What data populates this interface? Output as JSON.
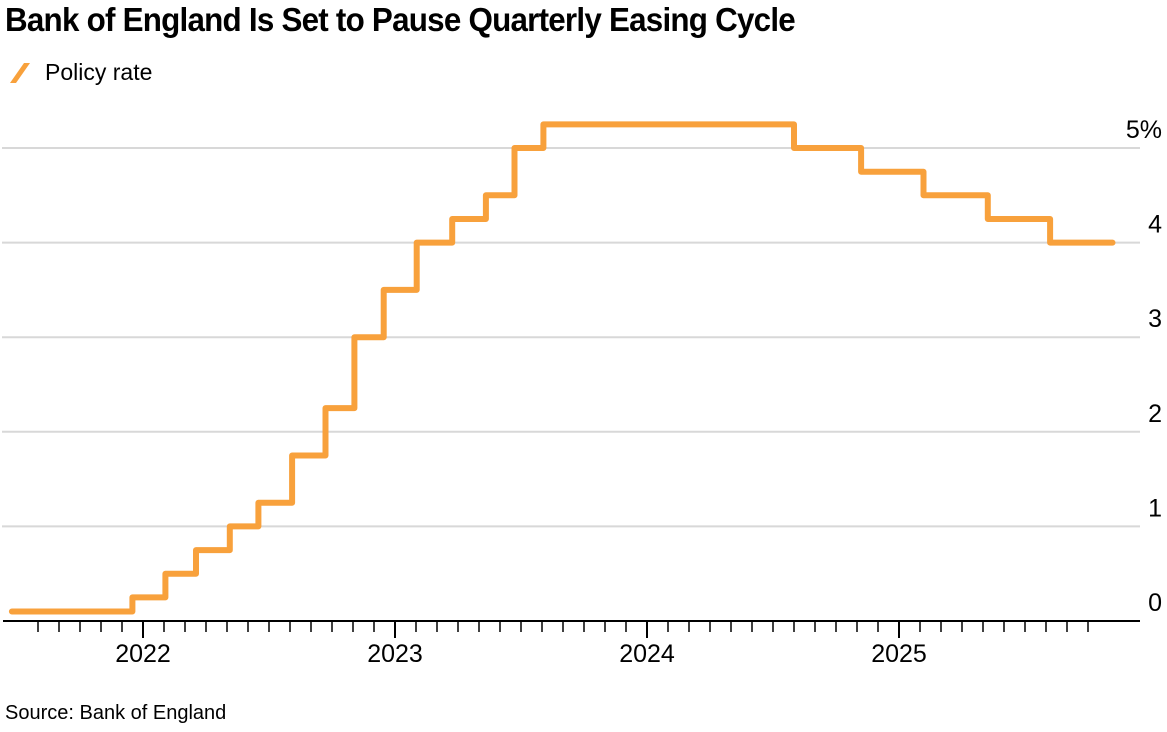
{
  "chart_data": {
    "type": "line",
    "line_style": "step-after",
    "title": "Bank of England Is Set to Pause Quarterly Easing Cycle",
    "source": "Source: Bank of England",
    "xlabel": "",
    "ylabel": "",
    "x_tick_labels": [
      "2022",
      "2023",
      "2024",
      "2025"
    ],
    "x_ticks_major_years": [
      2022,
      2023,
      2024,
      2025
    ],
    "x_minor_ticks": "monthly",
    "xlim_dates": [
      "2021-06-20",
      "2025-12-10"
    ],
    "y_ticks": [
      {
        "value": 0,
        "label": "0"
      },
      {
        "value": 1,
        "label": "1"
      },
      {
        "value": 2,
        "label": "2"
      },
      {
        "value": 3,
        "label": "3"
      },
      {
        "value": 4,
        "label": "4"
      },
      {
        "value": 5,
        "label": "5%"
      }
    ],
    "ylim": [
      0,
      5.55
    ],
    "grid": "horizontal",
    "y_axis_side": "right",
    "colors": {
      "line": "#F8A13C",
      "grid": "#D8D8D8",
      "axis": "#000000",
      "text": "#000000",
      "background": "#FFFFFF"
    },
    "series": [
      {
        "name": "Policy rate",
        "color": "#F8A13C",
        "unit": "%",
        "points": [
          {
            "date": "2021-06-24",
            "rate": 0.1
          },
          {
            "date": "2021-12-16",
            "rate": 0.25
          },
          {
            "date": "2022-02-03",
            "rate": 0.5
          },
          {
            "date": "2022-03-17",
            "rate": 0.75
          },
          {
            "date": "2022-05-05",
            "rate": 1.0
          },
          {
            "date": "2022-06-16",
            "rate": 1.25
          },
          {
            "date": "2022-08-04",
            "rate": 1.75
          },
          {
            "date": "2022-09-22",
            "rate": 2.25
          },
          {
            "date": "2022-11-03",
            "rate": 3.0
          },
          {
            "date": "2022-12-15",
            "rate": 3.5
          },
          {
            "date": "2023-02-02",
            "rate": 4.0
          },
          {
            "date": "2023-03-23",
            "rate": 4.25
          },
          {
            "date": "2023-05-11",
            "rate": 4.5
          },
          {
            "date": "2023-06-22",
            "rate": 5.0
          },
          {
            "date": "2023-08-03",
            "rate": 5.25
          },
          {
            "date": "2024-08-01",
            "rate": 5.0
          },
          {
            "date": "2024-11-07",
            "rate": 4.75
          },
          {
            "date": "2025-02-06",
            "rate": 4.5
          },
          {
            "date": "2025-05-08",
            "rate": 4.25
          },
          {
            "date": "2025-08-07",
            "rate": 4.0
          },
          {
            "date": "2025-11-06",
            "rate": 4.0
          }
        ]
      }
    ]
  }
}
